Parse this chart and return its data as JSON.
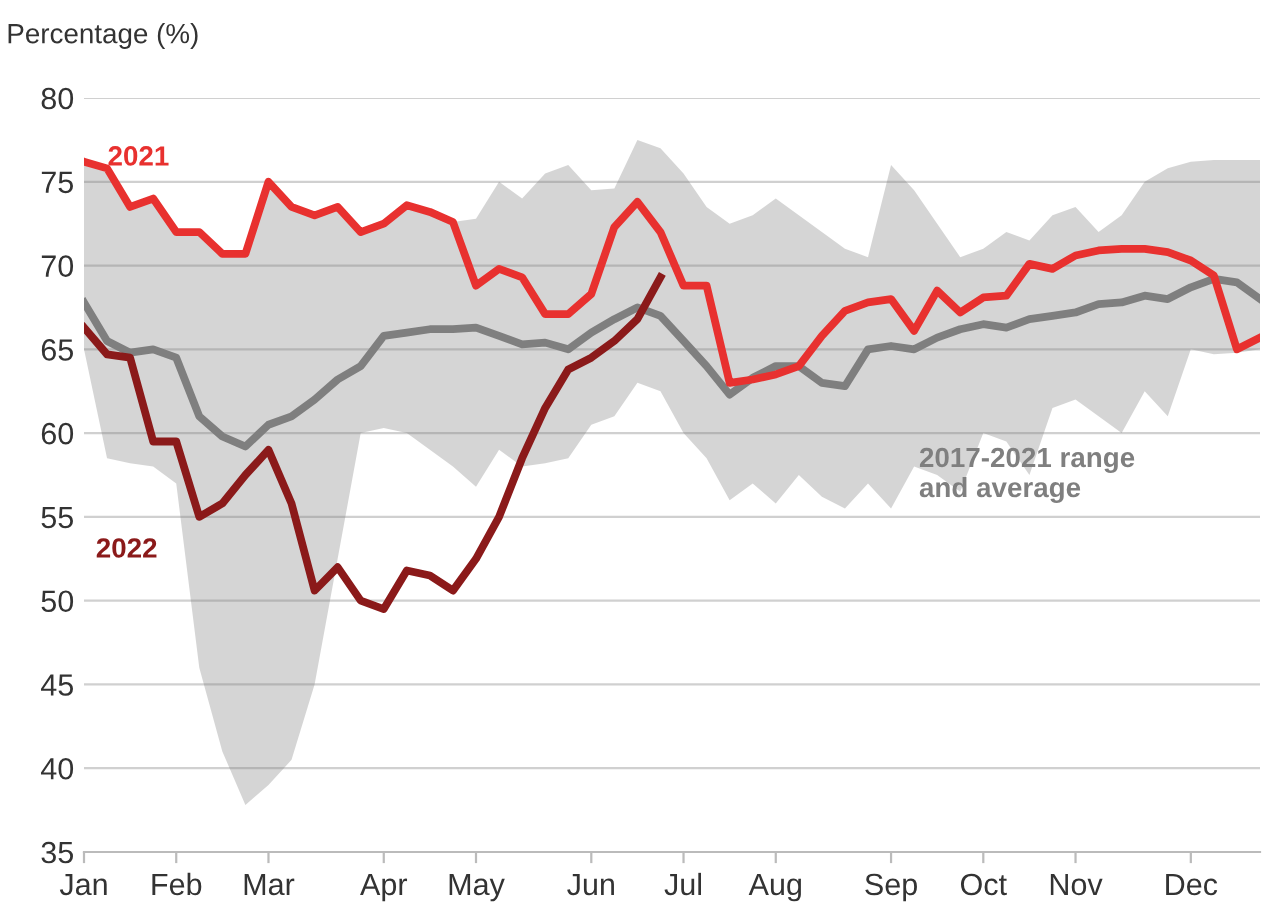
{
  "chart_data": {
    "type": "line",
    "ylabel": "Percentage (%)",
    "categories": [
      "Jan",
      null,
      null,
      null,
      "Feb",
      null,
      null,
      null,
      "Mar",
      null,
      null,
      null,
      null,
      "Apr",
      null,
      null,
      null,
      "May",
      null,
      null,
      null,
      null,
      "Jun",
      null,
      null,
      null,
      "Jul",
      null,
      null,
      null,
      "Aug",
      null,
      null,
      null,
      null,
      "Sep",
      null,
      null,
      null,
      "Oct",
      null,
      null,
      null,
      "Nov",
      null,
      null,
      null,
      null,
      "Dec",
      null,
      null,
      null
    ],
    "series": [
      {
        "name": "2017-2021 range\nand average",
        "color": "#7f7f7f",
        "values": [
          67.8,
          65.5,
          64.8,
          65.0,
          64.5,
          61.0,
          59.8,
          59.2,
          60.5,
          61.0,
          62.0,
          63.2,
          64.0,
          65.8,
          66.0,
          66.2,
          66.2,
          66.3,
          65.8,
          65.3,
          65.4,
          65.0,
          66.0,
          66.8,
          67.5,
          67.0,
          65.5,
          64.0,
          62.3,
          63.3,
          64.0,
          64.0,
          63.0,
          62.8,
          65.0,
          65.2,
          65.0,
          65.7,
          66.2,
          66.5,
          66.3,
          66.8,
          67.0,
          67.2,
          67.7,
          67.8,
          68.2,
          68.0,
          68.7,
          69.2,
          69.0,
          68.0
        ],
        "lower": [
          65,
          58.5,
          58.2,
          58,
          57,
          46,
          41,
          37.8,
          39,
          40.5,
          45,
          52.5,
          60,
          60.3,
          60,
          59,
          58,
          56.8,
          59,
          58,
          58.2,
          58.5,
          60.5,
          61,
          63,
          62.5,
          60,
          58.5,
          56,
          57,
          55.8,
          57.5,
          56.2,
          55.5,
          57,
          55.5,
          58,
          57.5,
          56.5,
          60,
          59.5,
          57.5,
          61.5,
          62,
          61,
          60,
          62.5,
          61,
          65,
          64.7,
          64.8,
          65
        ],
        "upper": [
          76,
          75.8,
          73.5,
          74,
          72,
          72,
          70.7,
          70.7,
          75,
          73.5,
          73,
          73.5,
          72,
          72.5,
          73.6,
          73.2,
          72.6,
          72.8,
          75,
          74,
          75.5,
          76,
          74.5,
          74.6,
          77.5,
          77,
          75.5,
          73.5,
          72.5,
          73,
          74,
          73,
          72,
          71,
          70.5,
          76,
          74.5,
          72.5,
          70.5,
          71,
          72,
          71.5,
          73,
          73.5,
          72,
          73,
          75,
          75.8,
          76.2,
          76.3,
          76.3,
          76.3
        ]
      },
      {
        "name": "2021",
        "color": "#e8312f",
        "values": [
          76.2,
          75.8,
          73.5,
          74.0,
          72.0,
          72.0,
          70.7,
          70.7,
          75.0,
          73.5,
          73.0,
          73.5,
          72.0,
          72.5,
          73.6,
          73.2,
          72.6,
          68.8,
          69.8,
          69.3,
          67.1,
          67.1,
          68.3,
          72.3,
          73.8,
          72.0,
          68.8,
          68.8,
          63.0,
          63.2,
          63.5,
          64.0,
          65.8,
          67.3,
          67.8,
          68.0,
          66.1,
          68.5,
          67.2,
          68.1,
          68.2,
          70.1,
          69.8,
          70.6,
          70.9,
          71.0,
          71.0,
          70.8,
          70.3,
          69.4,
          65.0,
          65.7
        ]
      },
      {
        "name": "2022",
        "color": "#8b1a1a",
        "values": [
          66.3,
          64.7,
          64.5,
          59.5,
          59.5,
          55.0,
          55.8,
          57.5,
          59.0,
          55.8,
          50.6,
          52.0,
          50.0,
          49.5,
          51.8,
          51.5,
          50.6,
          52.5,
          55.0,
          58.5,
          61.5,
          63.8,
          64.5,
          65.5,
          66.8,
          69.3,
          null,
          null,
          null,
          null,
          null,
          null,
          null,
          null,
          null,
          null,
          null,
          null,
          null,
          null,
          null,
          null,
          null,
          null,
          null,
          null,
          null,
          null,
          null,
          null,
          null,
          null
        ]
      }
    ],
    "ylim": [
      35,
      80
    ],
    "yticks": [
      35,
      40,
      45,
      50,
      55,
      60,
      65,
      70,
      75,
      80
    ],
    "grid": "y",
    "legend": false
  }
}
